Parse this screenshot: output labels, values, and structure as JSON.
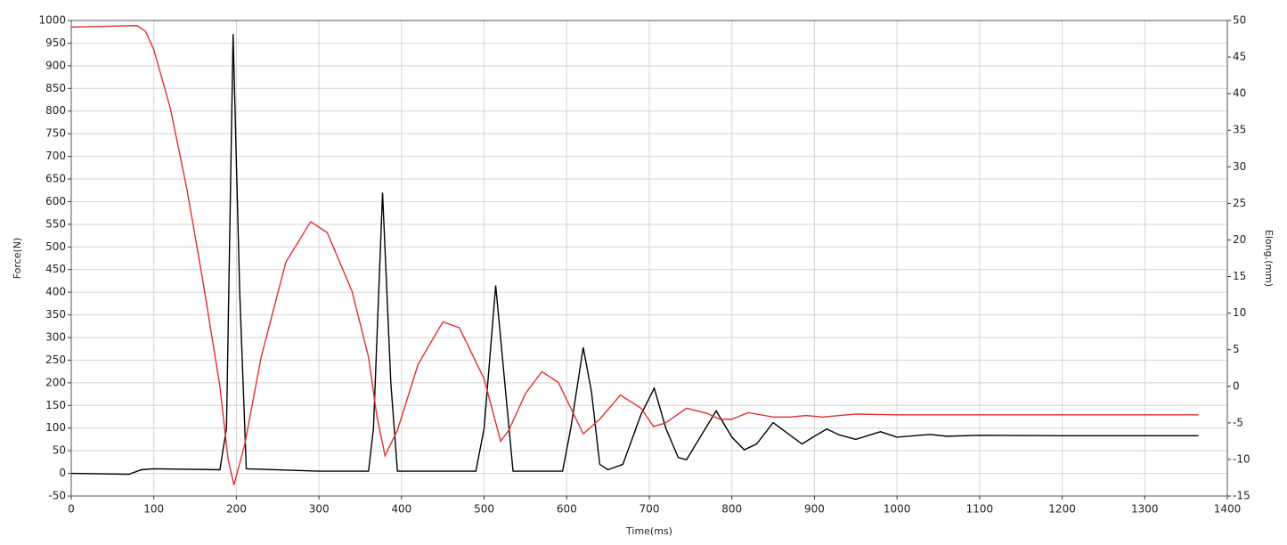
{
  "chart_data": {
    "type": "line",
    "xlabel": "Time(ms)",
    "ylabel": "Force(N)",
    "y2label": "Elong.(mm)",
    "xlim": [
      0,
      1400
    ],
    "xticks": [
      0,
      100,
      200,
      300,
      400,
      500,
      600,
      700,
      800,
      900,
      1000,
      1100,
      1200,
      1300,
      1400
    ],
    "ylim": [
      -50,
      1000
    ],
    "yticks": [
      -50,
      0,
      50,
      100,
      150,
      200,
      250,
      300,
      350,
      400,
      450,
      500,
      550,
      600,
      650,
      700,
      750,
      800,
      850,
      900,
      950,
      1000
    ],
    "y2lim": [
      -15,
      50
    ],
    "y2ticks": [
      -15,
      -10,
      -5,
      0,
      5,
      10,
      15,
      20,
      25,
      30,
      35,
      40,
      45,
      50
    ],
    "grid": true,
    "series": [
      {
        "color": "#000000",
        "x": [
          0,
          70,
          85,
          100,
          180,
          188,
          196,
          204,
          212,
          300,
          360,
          366,
          377,
          387,
          395,
          490,
          500,
          514,
          525,
          535,
          595,
          605,
          620,
          630,
          640,
          650,
          668,
          690,
          706,
          720,
          735,
          745,
          765,
          781,
          800,
          815,
          830,
          850,
          870,
          885,
          900,
          915,
          930,
          950,
          980,
          1000,
          1040,
          1060,
          1100,
          1200,
          1365
        ],
        "values": [
          0,
          -2,
          8,
          10,
          8,
          100,
          970,
          400,
          10,
          5,
          5,
          100,
          620,
          200,
          5,
          5,
          100,
          415,
          200,
          5,
          5,
          100,
          278,
          180,
          20,
          8,
          20,
          130,
          188,
          100,
          35,
          30,
          90,
          138,
          80,
          52,
          65,
          112,
          85,
          65,
          82,
          98,
          85,
          75,
          92,
          80,
          86,
          82,
          84,
          83,
          83
        ]
      },
      {
        "color": "#e03030",
        "axis": "y2",
        "x": [
          0,
          80,
          90,
          100,
          120,
          140,
          160,
          180,
          190,
          197,
          210,
          230,
          260,
          290,
          310,
          340,
          360,
          370,
          380,
          395,
          420,
          450,
          470,
          500,
          520,
          530,
          550,
          570,
          590,
          620,
          640,
          665,
          690,
          705,
          720,
          745,
          770,
          785,
          800,
          820,
          850,
          870,
          890,
          910,
          950,
          1000,
          1100,
          1365
        ],
        "values": [
          49.1,
          49.3,
          48.5,
          46,
          38,
          27,
          14,
          0,
          -10,
          -13.5,
          -8,
          4,
          17,
          22.5,
          21,
          13,
          4,
          -4,
          -9.5,
          -6,
          3,
          8.8,
          8,
          1,
          -7.5,
          -6,
          -1,
          2,
          0.5,
          -6.5,
          -4.5,
          -1.2,
          -3,
          -5.5,
          -5,
          -3,
          -3.7,
          -4.5,
          -4.5,
          -3.6,
          -4.2,
          -4.2,
          -4,
          -4.2,
          -3.8,
          -3.9,
          -3.9,
          -3.9
        ]
      }
    ]
  }
}
